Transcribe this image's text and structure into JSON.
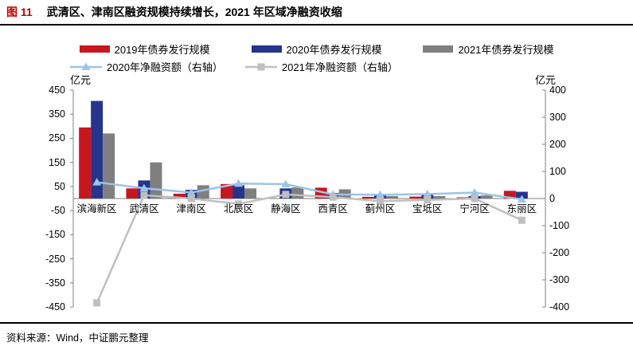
{
  "header": {
    "figure_label": "图 11",
    "title": "武清区、津南区融资规模持续增长，2021 年区域净融资收缩"
  },
  "footer": {
    "source": "资料来源：Wind，中证鹏元整理"
  },
  "axes": {
    "left_unit": "亿元",
    "right_unit": "亿元",
    "left_ticks": [
      450,
      350,
      250,
      150,
      50,
      -50,
      -150,
      -250,
      -350,
      -450
    ],
    "right_ticks": [
      400,
      300,
      200,
      100,
      0,
      -100,
      -200,
      -300,
      -400
    ],
    "left_range": [
      -450,
      450
    ],
    "right_range": [
      -400,
      400
    ]
  },
  "chart_data": {
    "type": "bar",
    "title": "武清区、津南区融资规模持续增长，2021 年区域净融资收缩",
    "xlabel": "",
    "ylabel_left": "亿元",
    "ylabel_right": "亿元",
    "ylim_left": [
      -450,
      450
    ],
    "ylim_right": [
      -400,
      400
    ],
    "legend_position": "top",
    "grid": false,
    "categories": [
      "滨海新区",
      "武清区",
      "津南区",
      "北辰区",
      "静海区",
      "西青区",
      "蓟州区",
      "宝坻区",
      "宁河区",
      "东丽区"
    ],
    "bar_series": [
      {
        "name": "2019年债券发行规模",
        "axis": "left",
        "color": "#c8161e",
        "values": [
          295,
          42,
          20,
          60,
          0,
          45,
          7,
          8,
          5,
          32
        ]
      },
      {
        "name": "2020年债券发行规模",
        "axis": "left",
        "color": "#26348c",
        "values": [
          405,
          75,
          36,
          55,
          42,
          23,
          16,
          15,
          10,
          28
        ]
      },
      {
        "name": "2021年债券发行规模",
        "axis": "left",
        "color": "#7f7f7f",
        "values": [
          270,
          150,
          55,
          42,
          46,
          38,
          10,
          10,
          13,
          0
        ]
      }
    ],
    "line_series": [
      {
        "name": "2020年净融资额（右轴）",
        "axis": "right",
        "color": "#9dc3e6",
        "marker": "triangle",
        "values": [
          60,
          38,
          22,
          55,
          53,
          15,
          14,
          16,
          22,
          -3
        ]
      },
      {
        "name": "2021年净融资额（右轴）",
        "axis": "right",
        "color": "#bfbfbf",
        "marker": "square",
        "values": [
          -385,
          12,
          0,
          -20,
          15,
          5,
          -10,
          -5,
          0,
          -80
        ]
      }
    ]
  }
}
